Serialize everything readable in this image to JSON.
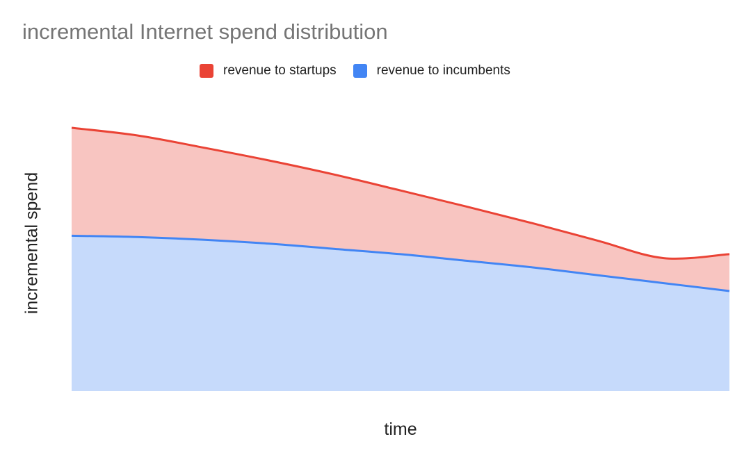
{
  "chart_data": {
    "type": "area",
    "stacked": true,
    "title": "incremental Internet spend distribution",
    "xlabel": "time",
    "ylabel": "incremental spend",
    "x_ticks_shown": false,
    "y_ticks_shown": false,
    "grid": false,
    "legend_position": "top",
    "xlim": [
      0,
      1
    ],
    "ylim": [
      0,
      1
    ],
    "x": [
      0,
      0.1,
      0.2,
      0.3,
      0.4,
      0.5,
      0.6,
      0.7,
      0.8,
      0.9,
      1.0
    ],
    "series": [
      {
        "name": "revenue to incumbents",
        "color": "#4285f4",
        "fill": "#c6dafb",
        "values": [
          0.59,
          0.585,
          0.575,
          0.56,
          0.54,
          0.52,
          0.495,
          0.47,
          0.44,
          0.41,
          0.38
        ]
      },
      {
        "name": "revenue to startups",
        "color": "#ea4335",
        "fill": "#f8c5c1",
        "values": [
          0.41,
          0.386,
          0.35,
          0.316,
          0.282,
          0.242,
          0.206,
          0.168,
          0.131,
          0.095,
          0.14
        ]
      }
    ]
  }
}
